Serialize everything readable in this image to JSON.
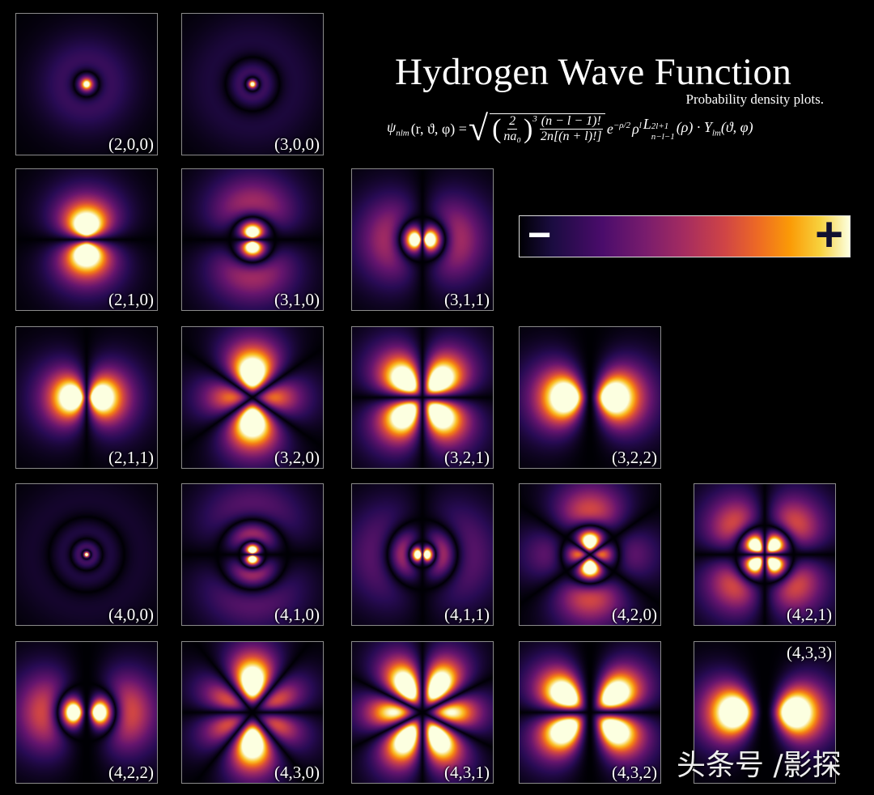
{
  "title": "Hydrogen Wave Function",
  "subtitle": "Probability density plots.",
  "equation": {
    "lhs": "ψ",
    "lhs_sub": "nlm",
    "lhs_args": "(r, ϑ, φ) =",
    "paren_num": "2",
    "paren_den": "na₀",
    "power": "3",
    "frac_num": "(n − l − 1)!",
    "frac_den": "2n[(n + l)!]",
    "exp_base": "e",
    "exp_sup": "−ρ/2",
    "rho": "ρ",
    "rho_sup": "l",
    "laguerre": "L",
    "laguerre_sup": "2l+1",
    "laguerre_sub": "n−l−1",
    "laguerre_arg": "(ρ) · Y",
    "y_sub": "lm",
    "y_args": "(ϑ, φ)"
  },
  "colorbar": {
    "minus_label": "−",
    "plus_label": "+",
    "colormap": [
      "#000004",
      "#4a0c6b",
      "#a52c60",
      "#ed6925",
      "#fb9b06",
      "#fcffe0"
    ]
  },
  "orbitals": [
    {
      "label": "(2,0,0)",
      "n": 2,
      "l": 0,
      "m": 0,
      "row": 0,
      "col": 0
    },
    {
      "label": "(3,0,0)",
      "n": 3,
      "l": 0,
      "m": 0,
      "row": 0,
      "col": 1
    },
    {
      "label": "(2,1,0)",
      "n": 2,
      "l": 1,
      "m": 0,
      "row": 1,
      "col": 0
    },
    {
      "label": "(3,1,0)",
      "n": 3,
      "l": 1,
      "m": 0,
      "row": 1,
      "col": 1
    },
    {
      "label": "(3,1,1)",
      "n": 3,
      "l": 1,
      "m": 1,
      "row": 1,
      "col": 2
    },
    {
      "label": "(2,1,1)",
      "n": 2,
      "l": 1,
      "m": 1,
      "row": 2,
      "col": 0
    },
    {
      "label": "(3,2,0)",
      "n": 3,
      "l": 2,
      "m": 0,
      "row": 2,
      "col": 1
    },
    {
      "label": "(3,2,1)",
      "n": 3,
      "l": 2,
      "m": 1,
      "row": 2,
      "col": 2
    },
    {
      "label": "(3,2,2)",
      "n": 3,
      "l": 2,
      "m": 2,
      "row": 2,
      "col": 3
    },
    {
      "label": "(4,0,0)",
      "n": 4,
      "l": 0,
      "m": 0,
      "row": 3,
      "col": 0
    },
    {
      "label": "(4,1,0)",
      "n": 4,
      "l": 1,
      "m": 0,
      "row": 3,
      "col": 1
    },
    {
      "label": "(4,1,1)",
      "n": 4,
      "l": 1,
      "m": 1,
      "row": 3,
      "col": 2
    },
    {
      "label": "(4,2,0)",
      "n": 4,
      "l": 2,
      "m": 0,
      "row": 3,
      "col": 3
    },
    {
      "label": "(4,2,1)",
      "n": 4,
      "l": 2,
      "m": 1,
      "row": 3,
      "col": 4
    },
    {
      "label": "(4,2,2)",
      "n": 4,
      "l": 2,
      "m": 2,
      "row": 4,
      "col": 0
    },
    {
      "label": "(4,3,0)",
      "n": 4,
      "l": 3,
      "m": 0,
      "row": 4,
      "col": 1
    },
    {
      "label": "(4,3,1)",
      "n": 4,
      "l": 3,
      "m": 1,
      "row": 4,
      "col": 2
    },
    {
      "label": "(4,3,2)",
      "n": 4,
      "l": 3,
      "m": 2,
      "row": 4,
      "col": 3
    },
    {
      "label": "(4,3,3)",
      "n": 4,
      "l": 3,
      "m": 3,
      "row": 4,
      "col": 4
    }
  ],
  "watermark": "头条号 /影探"
}
